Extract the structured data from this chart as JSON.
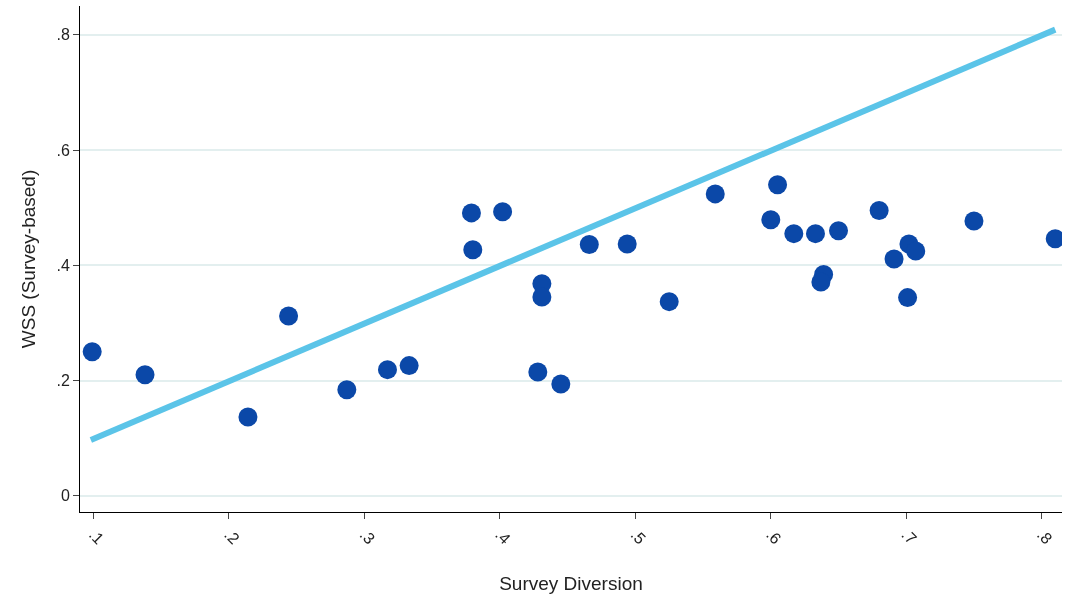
{
  "chart_data": {
    "type": "scatter",
    "xlabel": "Survey Diversion",
    "ylabel": "WSS (Survey-based)",
    "xlim": [
      0.09,
      0.815
    ],
    "ylim": [
      -0.028,
      0.85
    ],
    "xticks": [
      {
        "value": 0.1,
        "label": ".1"
      },
      {
        "value": 0.2,
        "label": ".2"
      },
      {
        "value": 0.3,
        "label": ".3"
      },
      {
        "value": 0.4,
        "label": ".4"
      },
      {
        "value": 0.5,
        "label": ".5"
      },
      {
        "value": 0.6,
        "label": ".6"
      },
      {
        "value": 0.7,
        "label": ".7"
      },
      {
        "value": 0.8,
        "label": ".8"
      }
    ],
    "yticks": [
      0,
      {
        "value": 0.2,
        "label": ".2"
      },
      {
        "value": 0.4,
        "label": ".4"
      },
      {
        "value": 0.6,
        "label": ".6"
      },
      {
        "value": 0.8,
        "label": ".8"
      }
    ],
    "grid": "y",
    "series": [
      {
        "type": "line",
        "color": "#5bc4e8",
        "marker": "none",
        "x": [
          0.098,
          0.81
        ],
        "values": [
          0.097,
          0.809
        ]
      },
      {
        "color": "#0b48a8",
        "marker": "circle",
        "x": [
          0.099,
          0.138,
          0.214,
          0.244,
          0.287,
          0.317,
          0.333,
          0.379,
          0.38,
          0.402,
          0.431,
          0.431,
          0.428,
          0.445,
          0.466,
          0.494,
          0.525,
          0.559,
          0.6,
          0.605,
          0.617,
          0.633,
          0.639,
          0.637,
          0.65,
          0.68,
          0.691,
          0.702,
          0.701,
          0.707,
          0.75,
          0.81
        ],
        "values": [
          0.25,
          0.21,
          0.137,
          0.312,
          0.184,
          0.219,
          0.226,
          0.491,
          0.427,
          0.493,
          0.368,
          0.345,
          0.215,
          0.194,
          0.436,
          0.437,
          0.337,
          0.524,
          0.479,
          0.54,
          0.455,
          0.455,
          0.384,
          0.371,
          0.46,
          0.495,
          0.411,
          0.437,
          0.344,
          0.425,
          0.477,
          0.446
        ]
      }
    ]
  }
}
